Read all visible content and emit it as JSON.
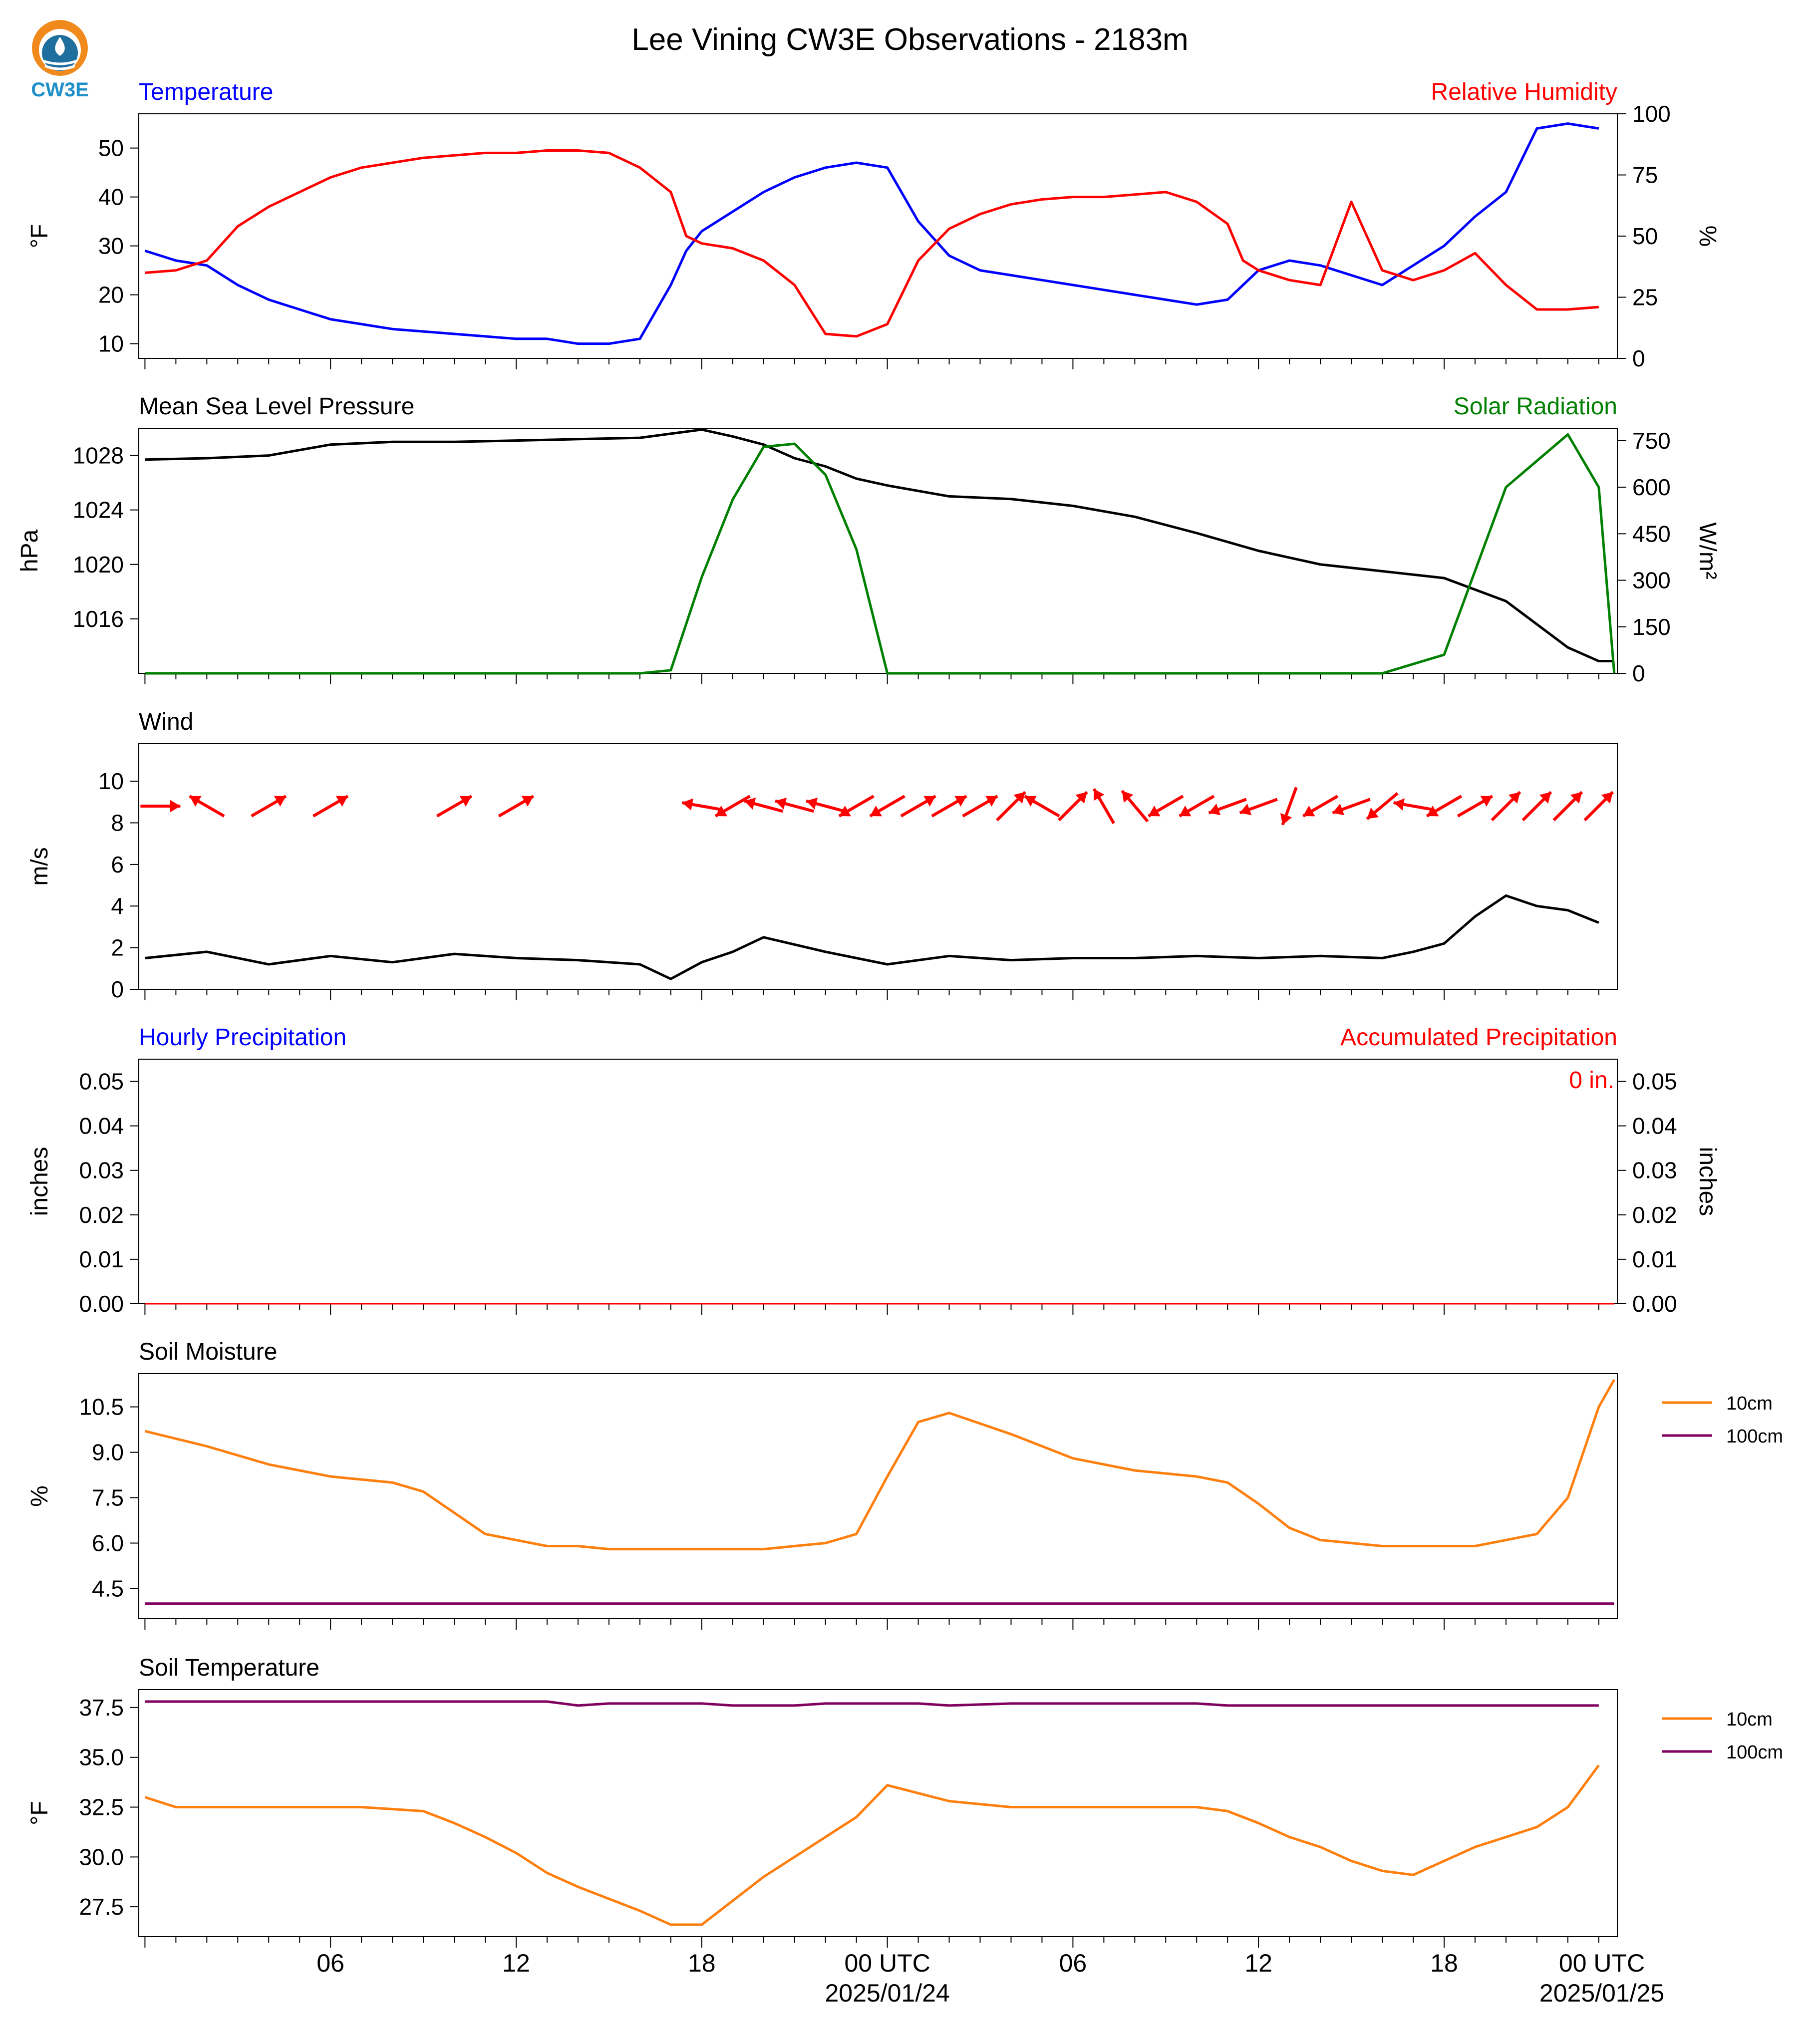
{
  "title": "Lee Vining CW3E Observations - 2183m",
  "logo_text": "CW3E",
  "x_axis": {
    "tick_labels": [
      "06",
      "12",
      "18",
      "00 UTC",
      "06",
      "12",
      "18",
      "00 UTC"
    ],
    "date_labels": [
      "2025/01/24",
      "2025/01/25"
    ]
  },
  "colors": {
    "temperature": "#0000ff",
    "humidity": "#ff0000",
    "pressure": "#000000",
    "solar": "#008000",
    "wind_speed": "#000000",
    "wind_arrows": "#ff0000",
    "accumulated_label": "#ff0000",
    "soil_10cm": "#ff7f0e",
    "soil_100cm": "#800060"
  },
  "chart_data": [
    {
      "type": "line",
      "left_label": "Temperature",
      "right_label": "Relative Humidity",
      "ylabel_left": "°F",
      "ylabel_right": "%",
      "yticks_left": [
        "10",
        "20",
        "30",
        "40",
        "50"
      ],
      "yticks_right": [
        "0",
        "25",
        "50",
        "75",
        "100"
      ],
      "ylim_left": [
        7,
        57
      ],
      "ylim_right": [
        0,
        100
      ],
      "x_hours": [
        0,
        1,
        2,
        3,
        4,
        5,
        6,
        7,
        8,
        9,
        10,
        11,
        12,
        13,
        14,
        15,
        16,
        17,
        17.5,
        18,
        19,
        20,
        21,
        22,
        23,
        24,
        25,
        26,
        27,
        28,
        29,
        30,
        31,
        32,
        33,
        34,
        35,
        35.5,
        36,
        37,
        38,
        39,
        40,
        41,
        42,
        43,
        44,
        45,
        46,
        47
      ],
      "series": [
        {
          "name": "Temperature",
          "axis": "left",
          "values": [
            29,
            27,
            26,
            22,
            19,
            17,
            15,
            14,
            13,
            12.5,
            12,
            11.5,
            11,
            11,
            10,
            10,
            11,
            22,
            29,
            33,
            37,
            41,
            44,
            46,
            47,
            46,
            35,
            28,
            25,
            24,
            23,
            22,
            21,
            20,
            19,
            18,
            19,
            22,
            25,
            27,
            26,
            24,
            22,
            26,
            30,
            36,
            41,
            54,
            55,
            54
          ]
        },
        {
          "name": "Relative Humidity",
          "axis": "right",
          "values": [
            35,
            36,
            40,
            54,
            62,
            68,
            74,
            78,
            80,
            82,
            83,
            84,
            84,
            85,
            85,
            84,
            78,
            68,
            50,
            47,
            45,
            40,
            30,
            10,
            9,
            14,
            40,
            53,
            59,
            63,
            65,
            66,
            66,
            67,
            68,
            64,
            55,
            40,
            36,
            32,
            30,
            64,
            36,
            32,
            36,
            43,
            30,
            20,
            20,
            21
          ]
        }
      ]
    },
    {
      "type": "line",
      "left_label": "Mean Sea Level Pressure",
      "right_label": "Solar Radiation",
      "ylabel_left": "hPa",
      "ylabel_right": "W/m²",
      "yticks_left": [
        "1016",
        "1020",
        "1024",
        "1028"
      ],
      "yticks_right": [
        "0",
        "150",
        "300",
        "450",
        "600",
        "750"
      ],
      "ylim_left": [
        1012,
        1030
      ],
      "ylim_right": [
        0,
        790
      ],
      "x_hours": [
        0,
        2,
        4,
        6,
        8,
        10,
        12,
        14,
        16,
        17,
        18,
        19,
        20,
        21,
        22,
        23,
        24,
        26,
        28,
        30,
        32,
        34,
        36,
        38,
        40,
        42,
        44,
        46,
        47,
        47.5
      ],
      "series": [
        {
          "name": "Mean Sea Level Pressure",
          "axis": "left",
          "values": [
            1027.7,
            1027.8,
            1028.0,
            1028.8,
            1029.0,
            1029.0,
            1029.1,
            1029.2,
            1029.3,
            1029.6,
            1029.9,
            1029.4,
            1028.8,
            1027.8,
            1027.2,
            1026.3,
            1025.8,
            1025.0,
            1024.8,
            1024.3,
            1023.5,
            1022.3,
            1021.0,
            1020.0,
            1019.5,
            1019.0,
            1017.3,
            1013.9,
            1012.9,
            1012.9
          ]
        },
        {
          "name": "Solar Radiation",
          "axis": "right",
          "values": [
            0,
            0,
            0,
            0,
            0,
            0,
            0,
            0,
            0,
            10,
            310,
            560,
            730,
            740,
            640,
            400,
            0,
            0,
            0,
            0,
            0,
            0,
            0,
            0,
            0,
            60,
            600,
            770,
            600,
            0
          ]
        }
      ]
    },
    {
      "type": "line",
      "left_label": "Wind",
      "ylabel_left": "m/s",
      "yticks_left": [
        "0",
        "2",
        "4",
        "6",
        "8",
        "10"
      ],
      "ylim_left": [
        0,
        11.8
      ],
      "x_hours": [
        0,
        2,
        4,
        6,
        8,
        10,
        12,
        14,
        16,
        17,
        18,
        19,
        20,
        22,
        24,
        26,
        28,
        30,
        32,
        34,
        36,
        38,
        40,
        41,
        42,
        43,
        44,
        45,
        46,
        47
      ],
      "series": [
        {
          "name": "Wind Speed",
          "axis": "left",
          "values": [
            1.5,
            1.8,
            1.2,
            1.6,
            1.3,
            1.7,
            1.5,
            1.4,
            1.2,
            0.5,
            1.3,
            1.8,
            2.5,
            1.8,
            1.2,
            1.6,
            1.4,
            1.5,
            1.5,
            1.6,
            1.5,
            1.6,
            1.5,
            1.8,
            2.2,
            3.5,
            4.5,
            4.0,
            3.8,
            3.2
          ]
        }
      ],
      "wind_arrows_hours": [
        0.5,
        2,
        4,
        6,
        10,
        12,
        18,
        19,
        20,
        21,
        22,
        23,
        24,
        25,
        26,
        27,
        28,
        29,
        30,
        31,
        32,
        33,
        34,
        35,
        36,
        37,
        38,
        39,
        40,
        41,
        42,
        43,
        44,
        45,
        46,
        47
      ],
      "wind_arrows_direction_deg": [
        90,
        300,
        60,
        60,
        60,
        60,
        280,
        240,
        285,
        285,
        285,
        240,
        240,
        60,
        60,
        60,
        45,
        300,
        45,
        330,
        320,
        240,
        240,
        250,
        250,
        200,
        240,
        250,
        230,
        280,
        240,
        60,
        45,
        45,
        45,
        45
      ]
    },
    {
      "type": "line",
      "left_label": "Hourly Precipitation",
      "right_label": "Accumulated Precipitation",
      "accumulated_text": "0 in.",
      "ylabel_left": "inches",
      "ylabel_right": "inches",
      "yticks_left": [
        "0.00",
        "0.01",
        "0.02",
        "0.03",
        "0.04",
        "0.05"
      ],
      "yticks_right": [
        "0.00",
        "0.01",
        "0.02",
        "0.03",
        "0.04",
        "0.05"
      ],
      "ylim_left": [
        0,
        0.055
      ],
      "x_hours": [
        0,
        47.5
      ],
      "series": [
        {
          "name": "Hourly Precipitation",
          "axis": "left",
          "values": [
            0,
            0
          ]
        },
        {
          "name": "Accumulated Precipitation",
          "axis": "right",
          "values": [
            0,
            0
          ]
        }
      ]
    },
    {
      "type": "line",
      "left_label": "Soil Moisture",
      "ylabel_left": "%",
      "yticks_left": [
        "4.5",
        "6.0",
        "7.5",
        "9.0",
        "10.5"
      ],
      "ylim_left": [
        3.5,
        11.6
      ],
      "legend": [
        "10cm",
        "100cm"
      ],
      "x_hours": [
        0,
        2,
        4,
        6,
        8,
        9,
        10,
        11,
        12,
        13,
        14,
        15,
        16,
        17,
        18,
        19,
        20,
        21,
        22,
        23,
        24,
        25,
        26,
        28,
        30,
        32,
        34,
        35,
        36,
        37,
        38,
        40,
        42,
        43,
        44,
        45,
        46,
        47,
        47.5
      ],
      "series": [
        {
          "name": "10cm",
          "axis": "left",
          "values": [
            9.7,
            9.2,
            8.6,
            8.2,
            8.0,
            7.7,
            7.0,
            6.3,
            6.1,
            5.9,
            5.9,
            5.8,
            5.8,
            5.8,
            5.8,
            5.8,
            5.8,
            5.9,
            6.0,
            6.3,
            8.2,
            10.0,
            10.3,
            9.6,
            8.8,
            8.4,
            8.2,
            8.0,
            7.3,
            6.5,
            6.1,
            5.9,
            5.9,
            5.9,
            6.1,
            6.3,
            7.5,
            10.5,
            11.4
          ]
        },
        {
          "name": "100cm",
          "axis": "left",
          "values": [
            4.0,
            4.0,
            4.0,
            4.0,
            4.0,
            4.0,
            4.0,
            4.0,
            4.0,
            4.0,
            4.0,
            4.0,
            4.0,
            4.0,
            4.0,
            4.0,
            4.0,
            4.0,
            4.0,
            4.0,
            4.0,
            4.0,
            4.0,
            4.0,
            4.0,
            4.0,
            4.0,
            4.0,
            4.0,
            4.0,
            4.0,
            4.0,
            4.0,
            4.0,
            4.0,
            4.0,
            4.0,
            4.0,
            4.0
          ]
        }
      ]
    },
    {
      "type": "line",
      "left_label": "Soil Temperature",
      "ylabel_left": "°F",
      "yticks_left": [
        "27.5",
        "30.0",
        "32.5",
        "35.0",
        "37.5"
      ],
      "ylim_left": [
        26.0,
        38.4
      ],
      "legend": [
        "10cm",
        "100cm"
      ],
      "x_hours": [
        0,
        1,
        3,
        5,
        7,
        9,
        10,
        11,
        12,
        13,
        14,
        15,
        16,
        17,
        18,
        19,
        20,
        21,
        22,
        23,
        24,
        25,
        26,
        28,
        30,
        32,
        34,
        35,
        36,
        37,
        38,
        39,
        40,
        41,
        42,
        43,
        44,
        45,
        46,
        47
      ],
      "series": [
        {
          "name": "10cm",
          "axis": "left",
          "values": [
            33.0,
            32.5,
            32.5,
            32.5,
            32.5,
            32.3,
            31.7,
            31.0,
            30.2,
            29.2,
            28.5,
            27.9,
            27.3,
            26.6,
            26.6,
            27.8,
            29.0,
            30.0,
            31.0,
            32.0,
            33.6,
            33.2,
            32.8,
            32.5,
            32.5,
            32.5,
            32.5,
            32.3,
            31.7,
            31.0,
            30.5,
            29.8,
            29.3,
            29.1,
            29.8,
            30.5,
            31.0,
            31.5,
            32.5,
            34.6
          ]
        },
        {
          "name": "100cm",
          "axis": "left",
          "values": [
            37.8,
            37.8,
            37.8,
            37.8,
            37.8,
            37.8,
            37.8,
            37.8,
            37.8,
            37.8,
            37.6,
            37.7,
            37.7,
            37.7,
            37.7,
            37.6,
            37.6,
            37.6,
            37.7,
            37.7,
            37.7,
            37.7,
            37.6,
            37.7,
            37.7,
            37.7,
            37.7,
            37.6,
            37.6,
            37.6,
            37.6,
            37.6,
            37.6,
            37.6,
            37.6,
            37.6,
            37.6,
            37.6,
            37.6,
            37.6
          ]
        }
      ]
    }
  ]
}
